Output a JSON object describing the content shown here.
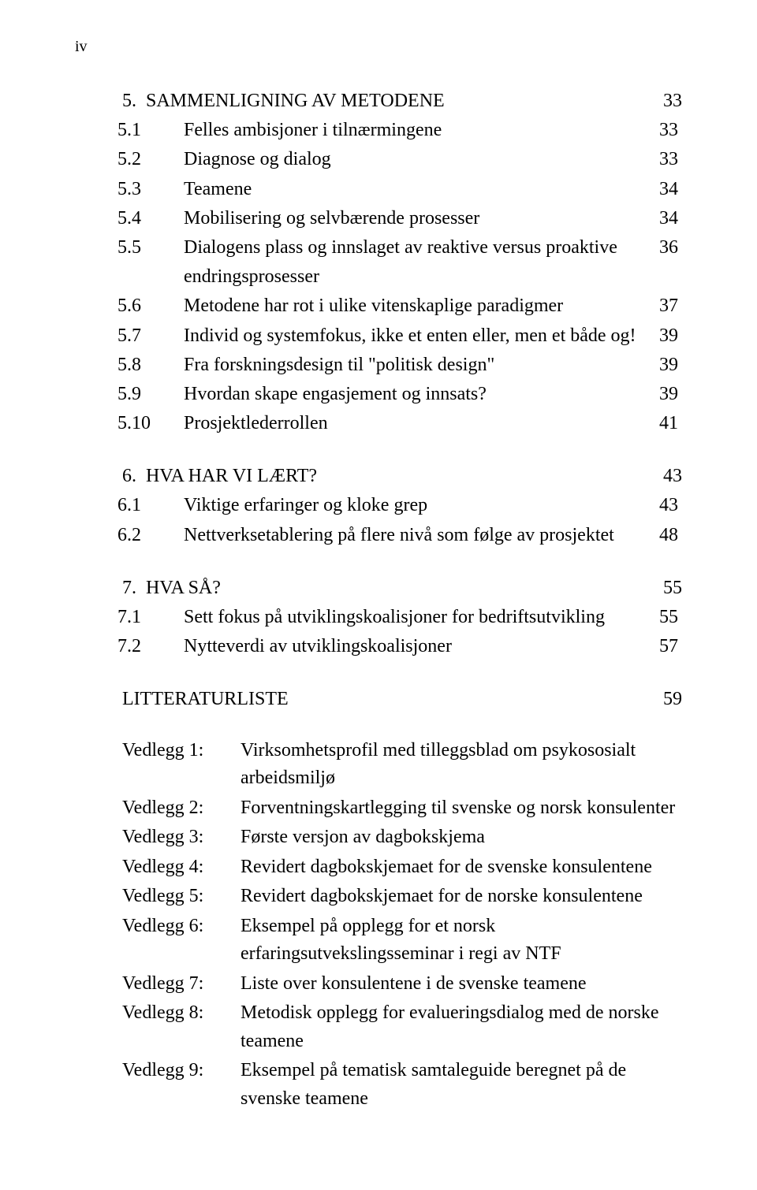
{
  "page_marker": "iv",
  "sections": [
    {
      "number": "5.",
      "title": "SAMMENLIGNING AV METODENE",
      "page": "33",
      "items": [
        {
          "num": "5.1",
          "text": "Felles ambisjoner i tilnærmingene",
          "page": "33"
        },
        {
          "num": "5.2",
          "text": "Diagnose og dialog",
          "page": "33"
        },
        {
          "num": "5.3",
          "text": "Teamene",
          "page": "34"
        },
        {
          "num": "5.4",
          "text": "Mobilisering og selvbærende prosesser",
          "page": "34"
        },
        {
          "num": "5.5",
          "text": "Dialogens plass og innslaget av reaktive versus proaktive endringsprosesser",
          "page": "36"
        },
        {
          "num": "5.6",
          "text": "Metodene har rot i ulike vitenskaplige paradigmer",
          "page": "37"
        },
        {
          "num": "5.7",
          "text": "Individ og systemfokus, ikke et enten eller, men et både og!",
          "page": "39"
        },
        {
          "num": "5.8",
          "text": "Fra forskningsdesign til \"politisk design\"",
          "page": "39"
        },
        {
          "num": "5.9",
          "text": "Hvordan skape engasjement og innsats?",
          "page": "39"
        },
        {
          "num": "5.10",
          "text": "Prosjektlederrollen",
          "page": "41"
        }
      ]
    },
    {
      "number": "6.",
      "title": "HVA HAR VI LÆRT?",
      "page": "43",
      "items": [
        {
          "num": "6.1",
          "text": "Viktige erfaringer og kloke grep",
          "page": "43"
        },
        {
          "num": "6.2",
          "text": "Nettverksetablering på flere nivå som følge av prosjektet",
          "page": "48"
        }
      ]
    },
    {
      "number": "7.",
      "title": "HVA SÅ?",
      "page": "55",
      "items": [
        {
          "num": "7.1",
          "text": "Sett fokus på utviklingskoalisjoner for bedriftsutvikling",
          "page": "55"
        },
        {
          "num": "7.2",
          "text": "Nytteverdi av utviklingskoalisjoner",
          "page": "57"
        }
      ]
    }
  ],
  "litteratur": {
    "label": "LITTERATURLISTE",
    "page": "59"
  },
  "vedlegg": [
    {
      "key": "Vedlegg 1:",
      "text": "Virksomhetsprofil med tilleggsblad om psykososialt arbeidsmiljø"
    },
    {
      "key": "Vedlegg 2:",
      "text": "Forventningskartlegging til svenske og norsk konsulenter"
    },
    {
      "key": "Vedlegg 3:",
      "text": "Første versjon av dagbokskjema"
    },
    {
      "key": "Vedlegg 4:",
      "text": "Revidert dagbokskjemaet for de svenske konsulentene"
    },
    {
      "key": "Vedlegg 5:",
      "text": "Revidert dagbokskjemaet for de norske konsulentene"
    },
    {
      "key": "Vedlegg 6:",
      "text": "Eksempel på opplegg for et norsk erfaringsutvekslingsseminar i regi av NTF"
    },
    {
      "key": "Vedlegg 7:",
      "text": "Liste over konsulentene i de svenske teamene"
    },
    {
      "key": "Vedlegg 8:",
      "text": "Metodisk opplegg for evalueringsdialog med de norske teamene"
    },
    {
      "key": "Vedlegg 9:",
      "text": "Eksempel på tematisk samtaleguide beregnet på de svenske teamene"
    }
  ],
  "colors": {
    "text": "#000000",
    "background": "#ffffff"
  },
  "typography": {
    "font_family": "Times New Roman",
    "body_fontsize_pt": 18,
    "pagenum_fontsize_pt": 15
  }
}
